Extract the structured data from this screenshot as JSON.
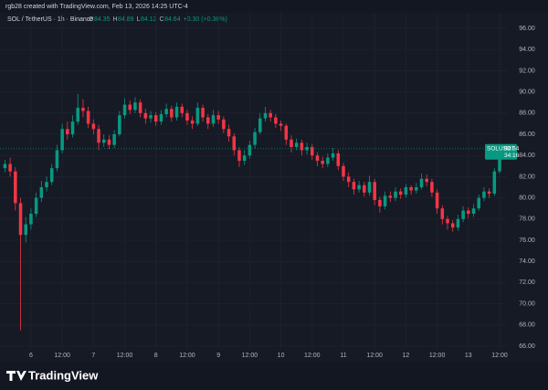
{
  "header": {
    "created": "rgb28 created with TradingView.com, Feb 13, 2026 14:25 UTC-4"
  },
  "chart_data": {
    "type": "candlestick",
    "symbol": "SOL / TetherUS · 1h · Binance",
    "ohlc": [
      {
        "label": "O",
        "value": 84.35
      },
      {
        "label": "H",
        "value": 84.89
      },
      {
        "label": "L",
        "value": 84.12
      },
      {
        "label": "C",
        "value": 84.64
      }
    ],
    "change": "+0.30 (+0.36%)",
    "up_color": "#089981",
    "down_color": "#f23645",
    "x": [
      -10,
      -8,
      -6,
      -4,
      -2,
      0,
      2,
      4,
      6,
      8,
      10,
      12,
      14,
      16,
      18,
      20,
      22,
      24,
      26,
      28,
      30,
      32,
      34,
      36,
      38,
      40,
      42,
      44,
      46,
      48,
      50,
      52,
      54,
      56,
      58,
      60,
      62,
      64,
      66,
      68,
      70,
      72,
      74,
      76,
      78,
      80,
      82,
      84,
      86,
      88,
      90,
      92,
      94,
      96,
      98,
      100,
      102,
      104,
      106,
      108,
      110,
      112,
      114,
      116,
      118,
      120,
      122,
      124,
      126,
      128,
      130,
      132,
      134,
      136,
      138,
      140,
      142,
      144,
      146,
      148,
      150,
      152,
      154,
      156,
      158,
      160,
      162,
      164,
      166,
      168,
      170,
      172,
      174,
      176,
      178,
      180,
      182
    ],
    "open": [
      82.8,
      83.2,
      82.5,
      79.5,
      76.5,
      77.5,
      78.5,
      80.0,
      81.0,
      81.5,
      82.8,
      84.5,
      86.5,
      86.0,
      87.2,
      88.5,
      88.2,
      87.0,
      86.5,
      85.2,
      85.5,
      85.0,
      86.0,
      87.8,
      88.8,
      88.3,
      89.0,
      88.0,
      87.5,
      87.8,
      87.2,
      87.9,
      88.4,
      87.6,
      88.6,
      88.0,
      87.3,
      87.0,
      88.5,
      87.6,
      87.0,
      87.8,
      87.4,
      86.5,
      85.8,
      84.5,
      83.5,
      84.0,
      85.0,
      86.2,
      87.5,
      88.0,
      87.6,
      87.0,
      86.8,
      85.5,
      84.8,
      85.2,
      84.5,
      84.8,
      84.0,
      83.5,
      83.2,
      83.8,
      84.2,
      83.0,
      82.0,
      81.5,
      80.8,
      81.2,
      80.5,
      81.5,
      79.8,
      79.2,
      80.2,
      80.0,
      80.6,
      80.3,
      81.0,
      80.7,
      81.0,
      81.8,
      81.5,
      80.5,
      79.0,
      78.0,
      77.6,
      77.2,
      78.0,
      78.8,
      78.5,
      79.0,
      80.0,
      80.6,
      80.4,
      82.5,
      84.35
    ],
    "high": [
      83.6,
      83.8,
      82.9,
      80.0,
      78.2,
      79.0,
      80.5,
      81.6,
      82.0,
      83.2,
      85.0,
      87.0,
      87.2,
      87.8,
      89.8,
      89.3,
      88.6,
      87.4,
      86.9,
      86.0,
      85.9,
      86.4,
      88.2,
      89.4,
      89.2,
      89.5,
      89.3,
      88.4,
      88.2,
      88.1,
      88.3,
      88.9,
      88.7,
      89.0,
      88.9,
      88.3,
      87.7,
      89.0,
      88.8,
      87.9,
      88.3,
      88.2,
      87.7,
      86.9,
      86.1,
      84.8,
      84.5,
      85.4,
      86.6,
      88.0,
      88.6,
      88.3,
      87.9,
      87.3,
      87.0,
      85.9,
      85.6,
      85.5,
      85.2,
      85.1,
      84.3,
      83.9,
      84.2,
      84.7,
      84.5,
      83.3,
      82.4,
      81.8,
      81.6,
      81.5,
      82.1,
      81.8,
      80.1,
      80.6,
      80.6,
      81.0,
      80.9,
      81.3,
      81.2,
      81.4,
      82.3,
      82.2,
      81.8,
      80.8,
      79.3,
      78.3,
      77.9,
      78.4,
      79.2,
      79.1,
      79.4,
      80.3,
      81.0,
      80.9,
      82.8,
      84.6,
      84.89
    ],
    "low": [
      82.4,
      82.0,
      78.8,
      67.5,
      75.8,
      77.0,
      78.2,
      79.6,
      80.6,
      81.2,
      82.5,
      84.2,
      85.5,
      85.7,
      86.9,
      87.6,
      86.6,
      86.0,
      84.5,
      84.8,
      84.6,
      84.7,
      85.8,
      87.5,
      87.9,
      88.0,
      87.6,
      87.0,
      87.1,
      86.8,
      86.9,
      87.6,
      87.2,
      87.3,
      87.6,
      86.9,
      86.5,
      86.8,
      87.2,
      86.5,
      86.7,
      87.0,
      86.1,
      85.3,
      84.0,
      82.9,
      83.1,
      83.7,
      84.7,
      86.0,
      87.2,
      87.2,
      86.6,
      86.3,
      85.0,
      84.3,
      84.5,
      84.0,
      84.1,
      83.6,
      83.0,
      82.8,
      82.9,
      83.5,
      82.6,
      81.6,
      81.0,
      80.3,
      80.5,
      80.1,
      80.2,
      79.3,
      78.6,
      78.9,
      79.6,
      79.7,
      79.9,
      80.0,
      80.3,
      80.4,
      80.8,
      81.1,
      80.1,
      78.5,
      77.5,
      77.0,
      76.8,
      76.9,
      77.7,
      78.1,
      78.2,
      78.8,
      79.7,
      80.0,
      80.2,
      82.3,
      84.12
    ],
    "close": [
      83.2,
      82.5,
      79.5,
      76.5,
      77.5,
      78.5,
      80.0,
      81.0,
      81.5,
      82.8,
      84.5,
      86.5,
      86.0,
      87.2,
      88.5,
      88.2,
      87.0,
      86.5,
      85.2,
      85.5,
      85.0,
      86.0,
      87.8,
      88.8,
      88.3,
      89.0,
      88.0,
      87.5,
      87.8,
      87.2,
      87.9,
      88.4,
      87.6,
      88.6,
      88.0,
      87.3,
      87.0,
      88.5,
      87.6,
      87.0,
      87.8,
      87.4,
      86.5,
      85.8,
      84.5,
      83.5,
      84.0,
      85.0,
      86.2,
      87.5,
      88.0,
      87.6,
      87.0,
      86.8,
      85.5,
      84.8,
      85.2,
      84.5,
      84.8,
      84.0,
      83.5,
      83.2,
      83.8,
      84.2,
      83.0,
      82.0,
      81.5,
      80.8,
      81.2,
      80.5,
      81.5,
      79.8,
      79.2,
      80.2,
      80.0,
      80.6,
      80.3,
      81.0,
      80.7,
      81.0,
      81.8,
      81.5,
      80.5,
      79.0,
      78.0,
      77.6,
      77.2,
      78.0,
      78.8,
      78.5,
      79.0,
      80.0,
      80.6,
      80.4,
      82.5,
      84.35,
      84.64
    ],
    "xlim": [
      -11.9,
      182.8
    ],
    "xticks": [
      {
        "value": 0,
        "label": "6"
      },
      {
        "value": 12,
        "label": "12:00"
      },
      {
        "value": 24,
        "label": "7"
      },
      {
        "value": 36,
        "label": "12:00"
      },
      {
        "value": 48,
        "label": "8"
      },
      {
        "value": 60,
        "label": "12:00"
      },
      {
        "value": 72,
        "label": "9"
      },
      {
        "value": 84,
        "label": "12:00"
      },
      {
        "value": 96,
        "label": "10"
      },
      {
        "value": 108,
        "label": "12:00"
      },
      {
        "value": 120,
        "label": "11"
      },
      {
        "value": 132,
        "label": "12:00"
      },
      {
        "value": 144,
        "label": "12"
      },
      {
        "value": 156,
        "label": "12:00"
      },
      {
        "value": 168,
        "label": "13"
      },
      {
        "value": 180,
        "label": "12:00"
      }
    ],
    "ylim": [
      65.74,
      97.47
    ],
    "yticks": [
      {
        "value": 66,
        "label": "66.00"
      },
      {
        "value": 68,
        "label": "68.00"
      },
      {
        "value": 70,
        "label": "70.00"
      },
      {
        "value": 72,
        "label": "72.00"
      },
      {
        "value": 74,
        "label": "74.00"
      },
      {
        "value": 76,
        "label": "76.00"
      },
      {
        "value": 78,
        "label": "78.00"
      },
      {
        "value": 80,
        "label": "80.00"
      },
      {
        "value": 82,
        "label": "82.00"
      },
      {
        "value": 84,
        "label": "84.00"
      },
      {
        "value": 86,
        "label": "86.00"
      },
      {
        "value": 88,
        "label": "88.00"
      },
      {
        "value": 90,
        "label": "90.00"
      },
      {
        "value": 92,
        "label": "92.00"
      },
      {
        "value": 94,
        "label": "94.00"
      },
      {
        "value": 96,
        "label": "96.00"
      }
    ],
    "grid": true,
    "last_price": {
      "symbol": "SOLUSDT",
      "value": 84.64,
      "countdown": "34:16"
    }
  },
  "footer": {
    "brand": "TradingView"
  }
}
